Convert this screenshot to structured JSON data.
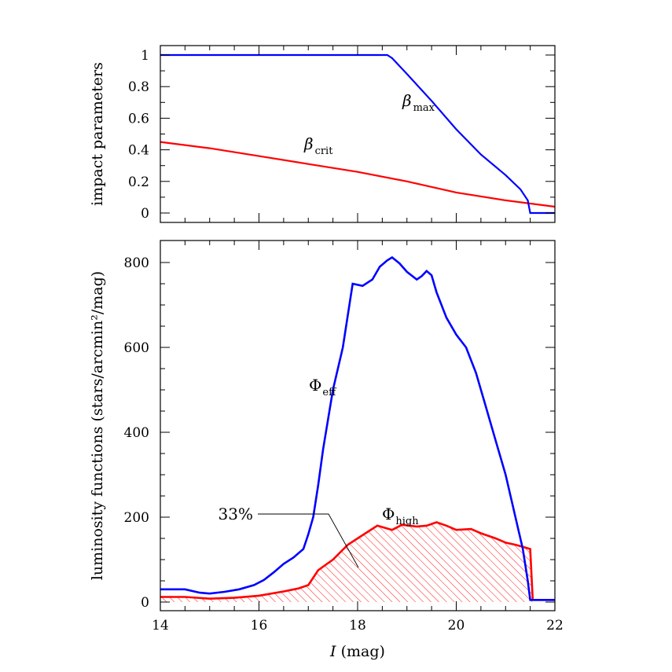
{
  "chart_data": [
    {
      "type": "line",
      "ylabel": "impact parameters",
      "xlim": [
        14,
        22
      ],
      "ylim": [
        0,
        1.0
      ],
      "yticks": [
        "0",
        "0.2",
        "0.4",
        "0.6",
        "0.8",
        "1"
      ],
      "x_ticks_labeled": false,
      "colors": {
        "beta_max": "#0000ff",
        "beta_crit": "#ff0000"
      },
      "annotations": [
        {
          "symbol": "β",
          "sub": "max",
          "series": "beta_max"
        },
        {
          "symbol": "β",
          "sub": "crit",
          "series": "beta_crit"
        }
      ],
      "series": [
        {
          "key": "beta_max",
          "x": [
            14,
            18.6,
            18.7,
            19.0,
            19.5,
            20.0,
            20.5,
            21.0,
            21.3,
            21.45,
            21.5,
            22
          ],
          "values": [
            1.0,
            1.0,
            0.98,
            0.88,
            0.71,
            0.53,
            0.37,
            0.24,
            0.15,
            0.08,
            0.0,
            0.0
          ]
        },
        {
          "key": "beta_crit",
          "x": [
            14,
            15,
            16,
            17,
            18,
            19,
            20,
            21,
            22
          ],
          "values": [
            0.45,
            0.41,
            0.36,
            0.31,
            0.26,
            0.2,
            0.13,
            0.08,
            0.04
          ]
        }
      ]
    },
    {
      "type": "line",
      "xlabel_italic": "I",
      "xlabel_rest": " (mag)",
      "ylabel": "luminosity functions (stars/arcmin²/mag)",
      "xlim": [
        14,
        22
      ],
      "ylim": [
        0,
        850
      ],
      "xticks": [
        "14",
        "16",
        "18",
        "20",
        "22"
      ],
      "yticks": [
        "0",
        "200",
        "400",
        "600",
        "800"
      ],
      "colors": {
        "phi_eff": "#0000ff",
        "phi_high": "#ff0000",
        "hatch": "#ff0000"
      },
      "annotations": [
        {
          "symbol": "Φ",
          "sub": "eff",
          "series": "phi_eff"
        },
        {
          "symbol": "Φ",
          "sub": "high",
          "series": "phi_high"
        },
        {
          "text": "33%",
          "points_to": "hatched area under Φhigh"
        }
      ],
      "series": [
        {
          "key": "phi_eff",
          "x": [
            14,
            14.5,
            14.8,
            15.0,
            15.3,
            15.6,
            15.9,
            16.1,
            16.3,
            16.5,
            16.7,
            16.9,
            17.0,
            17.1,
            17.2,
            17.3,
            17.5,
            17.7,
            17.9,
            18.1,
            18.3,
            18.45,
            18.6,
            18.7,
            18.85,
            19.0,
            19.2,
            19.3,
            19.4,
            19.5,
            19.6,
            19.8,
            20.0,
            20.2,
            20.4,
            20.6,
            20.8,
            21.0,
            21.2,
            21.35,
            21.45,
            21.5,
            21.6,
            22.0
          ],
          "values": [
            30,
            30,
            22,
            20,
            24,
            30,
            40,
            52,
            70,
            90,
            105,
            125,
            160,
            200,
            275,
            360,
            500,
            600,
            750,
            745,
            760,
            790,
            805,
            812,
            798,
            778,
            760,
            768,
            780,
            770,
            730,
            670,
            630,
            600,
            540,
            460,
            380,
            300,
            200,
            125,
            50,
            5,
            5,
            5
          ]
        },
        {
          "key": "phi_high",
          "x": [
            14,
            14.5,
            15.0,
            15.5,
            16.0,
            16.5,
            16.8,
            17.0,
            17.2,
            17.5,
            17.8,
            18.0,
            18.2,
            18.4,
            18.7,
            18.9,
            19.2,
            19.4,
            19.6,
            19.8,
            20.0,
            20.3,
            20.5,
            20.8,
            21.0,
            21.2,
            21.35,
            21.5,
            21.55,
            22.0
          ],
          "values": [
            12,
            12,
            8,
            10,
            15,
            25,
            32,
            40,
            75,
            100,
            135,
            150,
            165,
            180,
            170,
            182,
            178,
            180,
            188,
            180,
            170,
            172,
            162,
            150,
            140,
            135,
            130,
            125,
            5,
            5
          ]
        }
      ]
    }
  ]
}
